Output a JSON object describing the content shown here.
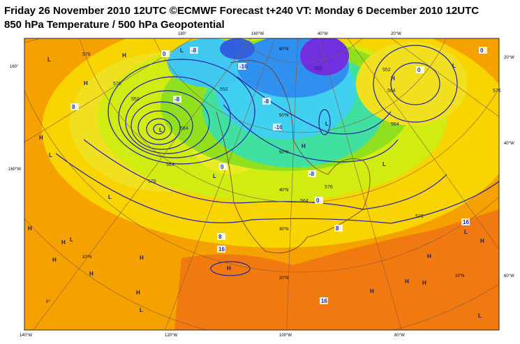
{
  "header": {
    "title": "Friday 26 November 2010 12UTC ©ECMWF Forecast t+240 VT: Monday 6 December 2010 12UTC",
    "subtitle": "850 hPa Temperature / 500 hPa Geopotential"
  },
  "map": {
    "grid_labels": [
      "180°",
      "160°W",
      "40°W",
      "20°W",
      "160°",
      "160°W",
      "140°W",
      "120°W",
      "100°W",
      "80°W",
      "20°W",
      "40°W",
      "60°W",
      "60°N",
      "50°N",
      "50°N",
      "40°N",
      "30°N",
      "20°N",
      "10°N",
      "0°",
      "10°N"
    ],
    "pressure_centers": [
      "H",
      "L",
      "H",
      "L",
      "H",
      "L",
      "H",
      "L",
      "L",
      "H",
      "H",
      "L",
      "H",
      "L",
      "H",
      "H",
      "L",
      "H",
      "H",
      "L",
      "H",
      "L",
      "H",
      "H",
      "L",
      "H",
      "H",
      "L",
      "H",
      "L"
    ],
    "contour_labels": [
      "576",
      "576",
      "552",
      "552",
      "564",
      "564",
      "576",
      "564",
      "552",
      "552",
      "564",
      "564",
      "576",
      "576",
      "576"
    ],
    "temperature_labels": [
      "0",
      "8",
      "-8",
      "-8",
      "0",
      "-16",
      "-8",
      "-16",
      "0",
      "-8",
      "0",
      "8",
      "16",
      "16",
      "16",
      "0",
      "8"
    ]
  }
}
